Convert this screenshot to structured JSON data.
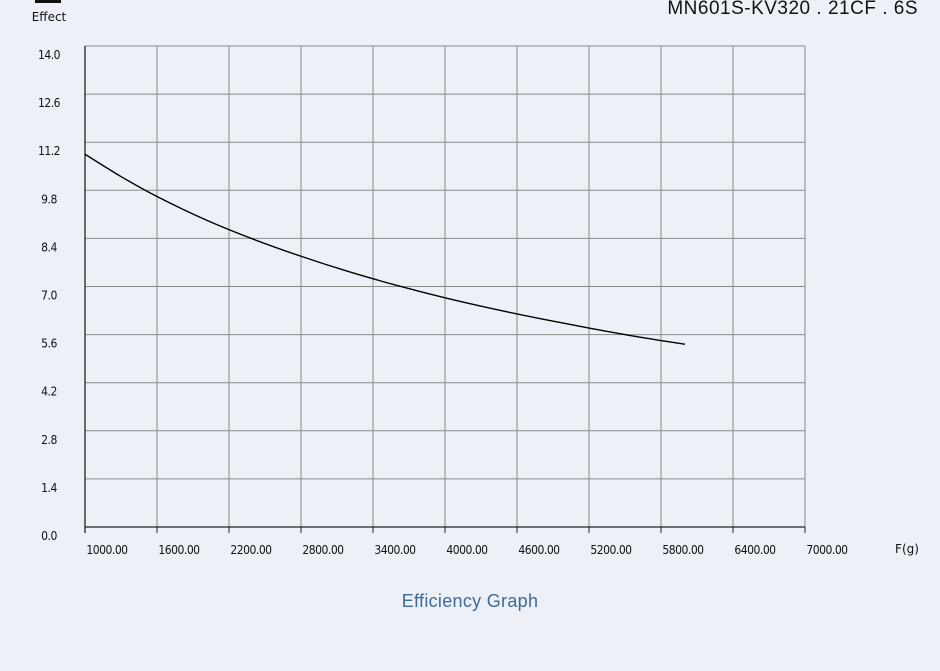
{
  "chart_data": {
    "type": "line",
    "title": "MN601S-KV320 . 21CF . 6S",
    "ylabel": "Effect",
    "xlabel": "F(g)",
    "caption": "Efficiency Graph",
    "xlim": [
      1000,
      7000
    ],
    "ylim": [
      0,
      14
    ],
    "x_ticks": [
      "1000.00",
      "1600.00",
      "2200.00",
      "2800.00",
      "3400.00",
      "4000.00",
      "4600.00",
      "5200.00",
      "5800.00",
      "6400.00",
      "7000.00"
    ],
    "y_ticks": [
      "0.0",
      "1.4",
      "2.8",
      "4.2",
      "5.6",
      "7.0",
      "8.4",
      "9.8",
      "11.2",
      "12.6",
      "14.0"
    ],
    "grid": true,
    "series": [
      {
        "x": [
          1000,
          1300,
          1600,
          2000,
          2400,
          2800,
          3200,
          3600,
          4000,
          4400,
          4800,
          5200,
          5600,
          6000
        ],
        "y": [
          10.85,
          10.2,
          9.62,
          8.95,
          8.38,
          7.88,
          7.43,
          7.03,
          6.67,
          6.35,
          6.06,
          5.79,
          5.54,
          5.32
        ]
      }
    ],
    "colors": {
      "line": "#000000",
      "grid": "#8a8a8a",
      "axis": "#222222",
      "background": "#edf1f7",
      "caption": "#3d6a96"
    }
  }
}
